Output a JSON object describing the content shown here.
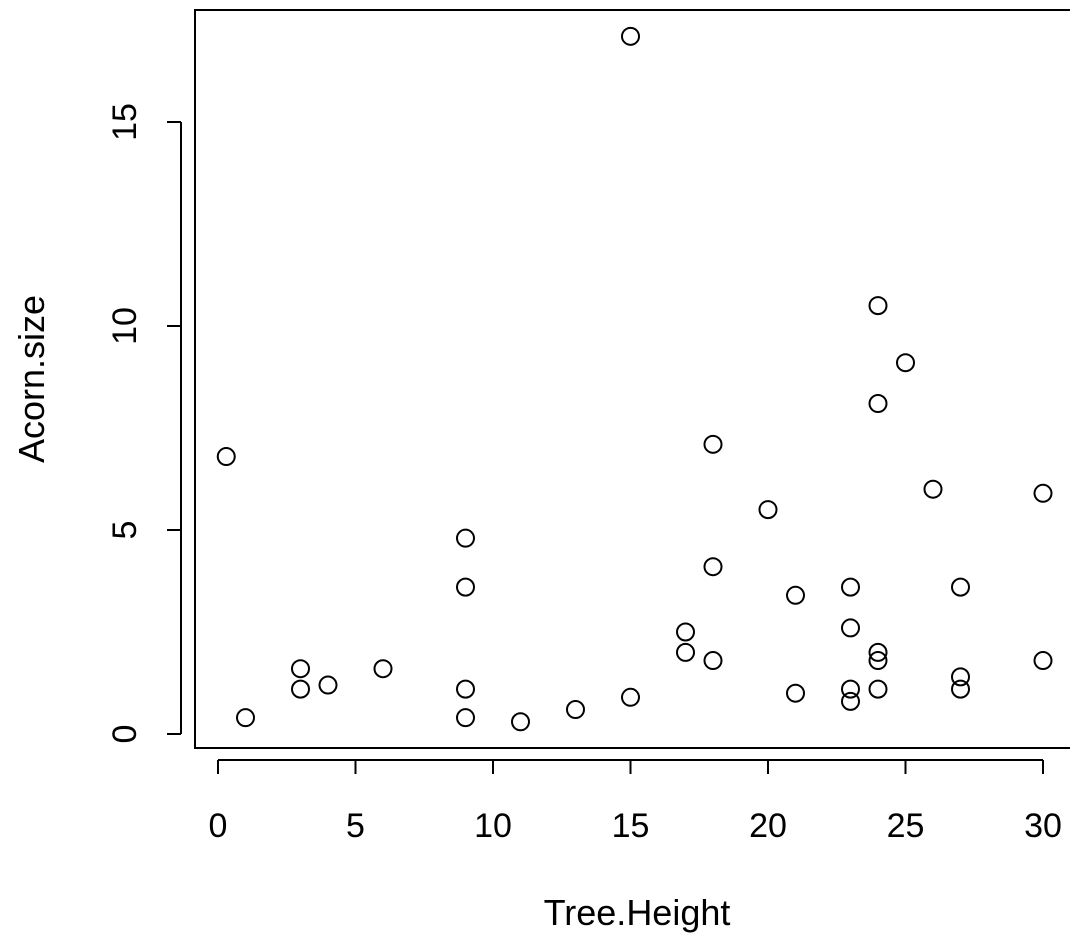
{
  "chart_data": {
    "type": "scatter",
    "title": "",
    "xlabel": "Tree.Height",
    "ylabel": "Acorn.size",
    "xlim": [
      0,
      30
    ],
    "ylim": [
      0,
      17
    ],
    "x_ticks": [
      0,
      5,
      10,
      15,
      20,
      25,
      30
    ],
    "y_ticks": [
      0,
      5,
      10,
      15
    ],
    "grid": false,
    "marker": "open-circle",
    "colors": {
      "point": "#000000",
      "axis": "#000000",
      "background": "#ffffff"
    },
    "points": [
      {
        "x": 0.3,
        "y": 6.8
      },
      {
        "x": 1,
        "y": 0.4
      },
      {
        "x": 3,
        "y": 1.6
      },
      {
        "x": 3,
        "y": 1.1
      },
      {
        "x": 4,
        "y": 1.2
      },
      {
        "x": 6,
        "y": 1.6
      },
      {
        "x": 9,
        "y": 4.8
      },
      {
        "x": 9,
        "y": 3.6
      },
      {
        "x": 9,
        "y": 1.1
      },
      {
        "x": 9,
        "y": 0.4
      },
      {
        "x": 11,
        "y": 0.3
      },
      {
        "x": 13,
        "y": 0.6
      },
      {
        "x": 15,
        "y": 17.1
      },
      {
        "x": 15,
        "y": 0.9
      },
      {
        "x": 17,
        "y": 2.5
      },
      {
        "x": 17,
        "y": 2.0
      },
      {
        "x": 18,
        "y": 7.1
      },
      {
        "x": 18,
        "y": 4.1
      },
      {
        "x": 18,
        "y": 1.8
      },
      {
        "x": 20,
        "y": 5.5
      },
      {
        "x": 21,
        "y": 3.4
      },
      {
        "x": 21,
        "y": 1.0
      },
      {
        "x": 23,
        "y": 3.6
      },
      {
        "x": 23,
        "y": 2.6
      },
      {
        "x": 23,
        "y": 1.1
      },
      {
        "x": 23,
        "y": 0.8
      },
      {
        "x": 24,
        "y": 10.5
      },
      {
        "x": 24,
        "y": 8.1
      },
      {
        "x": 24,
        "y": 2.0
      },
      {
        "x": 24,
        "y": 1.8
      },
      {
        "x": 24,
        "y": 1.1
      },
      {
        "x": 25,
        "y": 9.1
      },
      {
        "x": 26,
        "y": 6.0
      },
      {
        "x": 27,
        "y": 3.6
      },
      {
        "x": 27,
        "y": 1.4
      },
      {
        "x": 27,
        "y": 1.1
      },
      {
        "x": 30,
        "y": 5.9
      },
      {
        "x": 30,
        "y": 1.8
      }
    ]
  }
}
